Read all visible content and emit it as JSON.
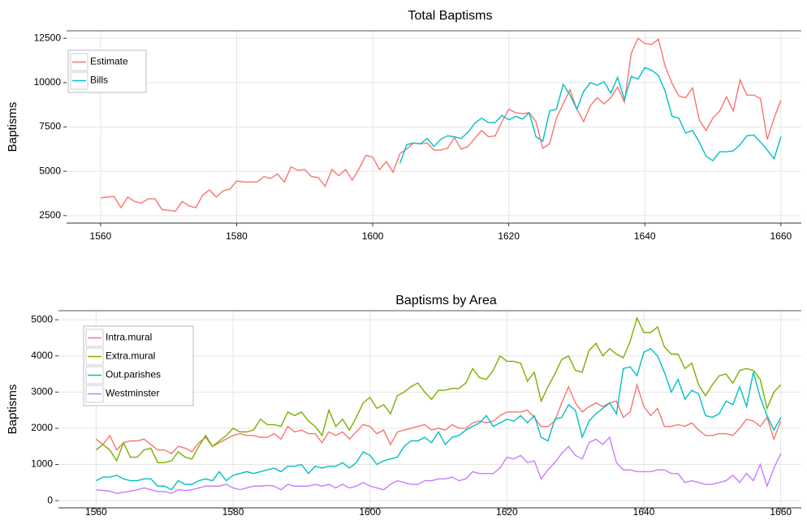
{
  "chart_data": [
    {
      "type": "line",
      "title": "Total Baptisms",
      "ylabel": "Baptisms",
      "x": [
        1560,
        1561,
        1562,
        1563,
        1564,
        1565,
        1566,
        1567,
        1568,
        1569,
        1570,
        1571,
        1572,
        1573,
        1574,
        1575,
        1576,
        1577,
        1578,
        1579,
        1580,
        1581,
        1582,
        1583,
        1584,
        1585,
        1586,
        1587,
        1588,
        1589,
        1590,
        1591,
        1592,
        1593,
        1594,
        1595,
        1596,
        1597,
        1598,
        1599,
        1600,
        1601,
        1602,
        1603,
        1604,
        1605,
        1606,
        1607,
        1608,
        1609,
        1610,
        1611,
        1612,
        1613,
        1614,
        1615,
        1616,
        1617,
        1618,
        1619,
        1620,
        1621,
        1622,
        1623,
        1624,
        1625,
        1626,
        1627,
        1628,
        1629,
        1630,
        1631,
        1632,
        1633,
        1634,
        1635,
        1636,
        1637,
        1638,
        1639,
        1640,
        1641,
        1642,
        1643,
        1644,
        1645,
        1646,
        1647,
        1648,
        1649,
        1650,
        1651,
        1652,
        1653,
        1654,
        1655,
        1656,
        1657,
        1658,
        1659,
        1660
      ],
      "series": [
        {
          "name": "Estimate",
          "color": "#f8766d",
          "values": [
            3500,
            3550,
            3580,
            2950,
            3550,
            3300,
            3200,
            3450,
            3450,
            2850,
            2800,
            2750,
            3300,
            3050,
            2950,
            3650,
            3950,
            3550,
            3900,
            4000,
            4450,
            4400,
            4400,
            4400,
            4700,
            4600,
            4850,
            4400,
            5250,
            5050,
            5100,
            4700,
            4650,
            4150,
            5100,
            4750,
            5100,
            4500,
            5150,
            5900,
            5800,
            5100,
            5550,
            4950,
            6000,
            6250,
            6600,
            6550,
            6600,
            6200,
            6200,
            6300,
            6900,
            6250,
            6400,
            6850,
            7300,
            6950,
            7000,
            7800,
            8500,
            8300,
            8250,
            8300,
            7800,
            6300,
            6550,
            8000,
            8800,
            9600,
            8500,
            7800,
            8700,
            9150,
            8800,
            9150,
            9750,
            8900,
            11650,
            12500,
            12200,
            12150,
            12450,
            10900,
            9950,
            9250,
            9150,
            9700,
            7900,
            7300,
            8000,
            8400,
            9200,
            8400,
            10150,
            9300,
            9300,
            9100,
            6800,
            8000,
            9000
          ]
        },
        {
          "name": "Bills",
          "color": "#00bfc4",
          "values": [
            null,
            null,
            null,
            null,
            null,
            null,
            null,
            null,
            null,
            null,
            null,
            null,
            null,
            null,
            null,
            null,
            null,
            null,
            null,
            null,
            null,
            null,
            null,
            null,
            null,
            null,
            null,
            null,
            null,
            null,
            null,
            null,
            null,
            null,
            null,
            null,
            null,
            null,
            null,
            null,
            null,
            null,
            null,
            null,
            5450,
            6500,
            6600,
            6550,
            6850,
            6400,
            6800,
            7000,
            6950,
            6850,
            7200,
            7700,
            8000,
            7750,
            7750,
            8150,
            7900,
            8100,
            7950,
            8300,
            6950,
            6700,
            8400,
            8500,
            9900,
            9300,
            8500,
            9500,
            10000,
            9850,
            10050,
            9400,
            10300,
            9050,
            10350,
            10200,
            10850,
            10700,
            10400,
            9500,
            8100,
            8000,
            7150,
            7300,
            6650,
            5850,
            5600,
            6100,
            6100,
            6150,
            6500,
            7000,
            7050,
            6650,
            6200,
            5700,
            6950
          ]
        }
      ],
      "xlim": [
        1555,
        1663
      ],
      "xticks": [
        1560,
        1580,
        1600,
        1620,
        1640,
        1660
      ],
      "ylim": [
        2080,
        12920
      ],
      "yticks": [
        2500,
        5000,
        7500,
        10000,
        12500
      ],
      "grid": true,
      "legend": "top-left"
    },
    {
      "type": "line",
      "title": "Baptisms by Area",
      "ylabel": "Baptisms",
      "x": [
        1560,
        1561,
        1562,
        1563,
        1564,
        1565,
        1566,
        1567,
        1568,
        1569,
        1570,
        1571,
        1572,
        1573,
        1574,
        1575,
        1576,
        1577,
        1578,
        1579,
        1580,
        1581,
        1582,
        1583,
        1584,
        1585,
        1586,
        1587,
        1588,
        1589,
        1590,
        1591,
        1592,
        1593,
        1594,
        1595,
        1596,
        1597,
        1598,
        1599,
        1600,
        1601,
        1602,
        1603,
        1604,
        1605,
        1606,
        1607,
        1608,
        1609,
        1610,
        1611,
        1612,
        1613,
        1614,
        1615,
        1616,
        1617,
        1618,
        1619,
        1620,
        1621,
        1622,
        1623,
        1624,
        1625,
        1626,
        1627,
        1628,
        1629,
        1630,
        1631,
        1632,
        1633,
        1634,
        1635,
        1636,
        1637,
        1638,
        1639,
        1640,
        1641,
        1642,
        1643,
        1644,
        1645,
        1646,
        1647,
        1648,
        1649,
        1650,
        1651,
        1652,
        1653,
        1654,
        1655,
        1656,
        1657,
        1658,
        1659,
        1660
      ],
      "series": [
        {
          "name": "Intra.mural",
          "color": "#f8766d",
          "values": [
            1700,
            1550,
            1800,
            1400,
            1600,
            1650,
            1650,
            1700,
            1550,
            1400,
            1400,
            1300,
            1500,
            1450,
            1350,
            1600,
            1750,
            1500,
            1600,
            1700,
            1800,
            1850,
            1800,
            1800,
            1750,
            1750,
            1850,
            1700,
            2050,
            1900,
            1950,
            1850,
            1850,
            1600,
            1900,
            1800,
            1900,
            1700,
            1900,
            2100,
            2050,
            1850,
            1950,
            1550,
            1900,
            1950,
            2000,
            2050,
            2100,
            1950,
            2000,
            1950,
            2100,
            2000,
            2000,
            2150,
            2200,
            2150,
            2200,
            2350,
            2450,
            2450,
            2450,
            2500,
            2300,
            2050,
            2050,
            2200,
            2700,
            3150,
            2700,
            2450,
            2600,
            2700,
            2600,
            2700,
            2750,
            2300,
            2450,
            3200,
            2600,
            2350,
            2550,
            2050,
            2050,
            2100,
            2050,
            2150,
            1950,
            1800,
            1800,
            1850,
            1850,
            1800,
            2000,
            2250,
            2200,
            2050,
            2300,
            1700,
            2200
          ]
        },
        {
          "name": "Extra.mural",
          "color": "#7cae00",
          "values": [
            1400,
            1550,
            1400,
            1100,
            1600,
            1200,
            1200,
            1400,
            1450,
            1050,
            1050,
            1100,
            1350,
            1200,
            1150,
            1500,
            1800,
            1500,
            1650,
            1800,
            2000,
            1900,
            1900,
            1950,
            2250,
            2100,
            2100,
            2050,
            2450,
            2350,
            2450,
            2200,
            2050,
            1800,
            2500,
            2050,
            2250,
            1950,
            2300,
            2700,
            2850,
            2550,
            2650,
            2400,
            2900,
            3000,
            3150,
            3250,
            3000,
            2800,
            3050,
            3050,
            3100,
            3100,
            3250,
            3650,
            3400,
            3350,
            3600,
            4000,
            3850,
            3850,
            3800,
            3300,
            3550,
            2750,
            3150,
            3500,
            3900,
            4000,
            3600,
            3550,
            4150,
            4350,
            4000,
            4200,
            4050,
            3950,
            4400,
            5050,
            4650,
            4650,
            4800,
            4250,
            4050,
            4050,
            3650,
            3800,
            3200,
            2900,
            3200,
            3450,
            3500,
            3250,
            3600,
            3650,
            3600,
            3350,
            2550,
            3000,
            3200
          ]
        },
        {
          "name": "Out.parishes",
          "color": "#00bfc4",
          "values": [
            550,
            650,
            650,
            700,
            600,
            550,
            550,
            600,
            600,
            400,
            400,
            300,
            550,
            450,
            450,
            550,
            600,
            550,
            800,
            550,
            700,
            750,
            800,
            750,
            800,
            850,
            900,
            800,
            950,
            950,
            1000,
            750,
            950,
            900,
            950,
            950,
            1050,
            900,
            1050,
            1350,
            1250,
            1000,
            1100,
            1150,
            1200,
            1500,
            1650,
            1650,
            1750,
            1600,
            1900,
            1550,
            1750,
            1800,
            1950,
            2050,
            2150,
            2350,
            2050,
            2150,
            2250,
            2200,
            2350,
            2150,
            2350,
            1750,
            1650,
            2250,
            2300,
            2650,
            2500,
            1750,
            2200,
            2400,
            2550,
            2700,
            2400,
            3650,
            3700,
            3450,
            4100,
            4200,
            4000,
            3550,
            3000,
            3350,
            2800,
            3050,
            2950,
            2350,
            2300,
            2400,
            2750,
            2650,
            3150,
            2600,
            3550,
            2850,
            2350,
            1950,
            2300
          ]
        },
        {
          "name": "Westminster",
          "color": "#c77cff",
          "values": [
            300,
            280,
            260,
            200,
            230,
            260,
            300,
            350,
            300,
            250,
            250,
            200,
            300,
            280,
            300,
            350,
            400,
            400,
            400,
            450,
            350,
            300,
            350,
            400,
            400,
            420,
            400,
            300,
            450,
            400,
            400,
            400,
            450,
            400,
            450,
            350,
            450,
            350,
            400,
            500,
            400,
            350,
            300,
            450,
            550,
            500,
            450,
            450,
            550,
            550,
            600,
            600,
            650,
            550,
            600,
            800,
            750,
            750,
            750,
            900,
            1200,
            1150,
            1250,
            1050,
            1100,
            600,
            850,
            1050,
            1300,
            1500,
            1250,
            1150,
            1600,
            1700,
            1550,
            1750,
            1050,
            850,
            850,
            800,
            800,
            800,
            850,
            850,
            750,
            750,
            500,
            550,
            500,
            450,
            450,
            500,
            550,
            700,
            500,
            750,
            550,
            1000,
            400,
            900,
            1300
          ]
        }
      ],
      "xlim": [
        1554.5,
        1663
      ],
      "xticks": [
        1560,
        1580,
        1600,
        1620,
        1640,
        1660
      ],
      "ylim": [
        -200,
        5250
      ],
      "yticks": [
        0,
        1000,
        2000,
        3000,
        4000,
        5000
      ],
      "grid": true,
      "legend": "top-left"
    }
  ]
}
